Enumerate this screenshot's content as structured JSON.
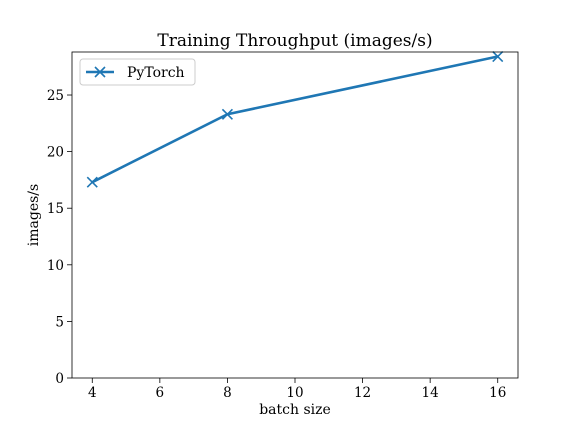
{
  "chart_data": {
    "type": "line",
    "title": "Training Throughput (images/s)",
    "xlabel": "batch size",
    "ylabel": "images/s",
    "xlim": [
      3.4,
      16.6
    ],
    "ylim": [
      0,
      28.8
    ],
    "xticks": [
      4,
      6,
      8,
      10,
      12,
      14,
      16
    ],
    "yticks": [
      0,
      5,
      10,
      15,
      20,
      25
    ],
    "grid": false,
    "legend_position": "top-left",
    "series": [
      {
        "name": "PyTorch",
        "color": "#1f77b4",
        "marker": "x",
        "x": [
          4,
          8,
          16
        ],
        "y": [
          17.3,
          23.3,
          28.4
        ]
      }
    ]
  }
}
